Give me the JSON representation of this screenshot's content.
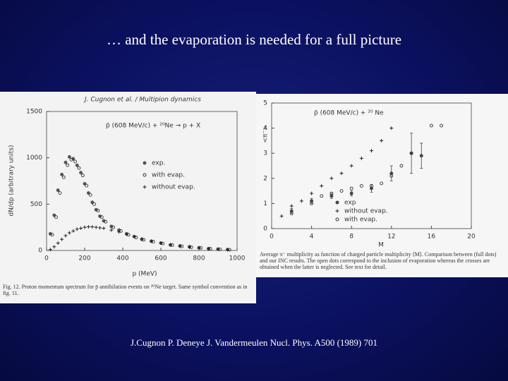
{
  "title": "… and the evaporation is needed for a full picture",
  "citation": "J.Cugnon P. Deneye J. Vandermeulen Nucl. Phys. A500 (1989) 701",
  "chart_data": [
    {
      "type": "scatter",
      "header": "J. Cugnon et al. / Multipion dynamics",
      "title": "p̄ (608 MeV/c) + ²⁰Ne → p + X",
      "x_label": "p (MeV)",
      "y_label": "dN/dp (arbitrary units)",
      "caption": "Fig. 12. Proton momentum spectrum for p̄ annihilation events on ²⁰Ne target. Same symbol convention as in fig. 11.",
      "xlim": [
        0,
        1000
      ],
      "xticks": [
        0,
        200,
        400,
        600,
        800,
        1000
      ],
      "ylim": [
        0,
        1500
      ],
      "yticks": [
        0,
        500,
        1000,
        1500
      ],
      "series": [
        {
          "name": "exp.",
          "color": "#555555",
          "marker": "filled",
          "x": [
            20,
            40,
            60,
            80,
            100,
            120,
            140,
            160,
            180,
            200,
            220,
            240,
            260,
            280,
            300,
            340,
            380,
            420,
            460,
            500,
            550,
            600,
            650,
            700,
            750,
            800,
            850,
            900,
            950
          ],
          "values": [
            180,
            380,
            650,
            820,
            950,
            1010,
            990,
            920,
            840,
            720,
            620,
            520,
            440,
            370,
            320,
            260,
            220,
            180,
            150,
            120,
            100,
            80,
            60,
            50,
            40,
            30,
            20,
            15,
            10
          ]
        },
        {
          "name": "with evap.",
          "color": "#333333",
          "marker": "open",
          "x": [
            30,
            50,
            70,
            90,
            110,
            130,
            150,
            170,
            190,
            210,
            230,
            250,
            270,
            290,
            310,
            350,
            390,
            430,
            470,
            510,
            560,
            610,
            660,
            710,
            760,
            810,
            860,
            910,
            960
          ],
          "values": [
            170,
            360,
            620,
            790,
            920,
            980,
            960,
            890,
            810,
            700,
            600,
            500,
            430,
            360,
            310,
            250,
            210,
            170,
            140,
            115,
            95,
            75,
            58,
            45,
            35,
            28,
            18,
            12,
            8
          ]
        },
        {
          "name": "without evap.",
          "color": "#222222",
          "marker": "cross",
          "x": [
            20,
            40,
            60,
            80,
            100,
            120,
            140,
            160,
            180,
            200,
            220,
            240,
            260,
            280,
            300,
            340,
            380,
            420,
            460,
            500,
            550,
            600,
            650,
            700,
            750,
            800,
            850,
            900,
            950
          ],
          "values": [
            10,
            40,
            80,
            120,
            160,
            190,
            210,
            230,
            240,
            250,
            255,
            255,
            250,
            245,
            240,
            220,
            200,
            175,
            150,
            125,
            100,
            80,
            60,
            45,
            35,
            25,
            18,
            12,
            8
          ]
        }
      ]
    },
    {
      "type": "scatter",
      "title": "p̄ (608 MeV/c) + ²⁰ Ne",
      "x_label": "M",
      "y_label": "<π⁻>",
      "caption": "Average π⁻ multiplicity as function of charged particle multiplicity ⟨M⟩. Comparison between (full dots) and our INC results. The open dots correspond to the inclusion of evaporation whereas the crosses are obtained when the latter is neglected. See text for detail.",
      "xlim": [
        0,
        20
      ],
      "xticks": [
        0,
        4,
        8,
        12,
        16,
        20
      ],
      "ylim": [
        0,
        5
      ],
      "yticks": [
        0,
        1,
        2,
        3,
        4,
        5
      ],
      "series": [
        {
          "name": "exp",
          "color": "#444444",
          "marker": "filled",
          "x": [
            2,
            4,
            6,
            8,
            10,
            12,
            14,
            15
          ],
          "values": [
            0.7,
            1.1,
            1.3,
            1.4,
            1.6,
            2.2,
            3.0,
            2.9
          ],
          "errors": [
            0.1,
            0.1,
            0.1,
            0.1,
            0.15,
            0.3,
            0.8,
            0.5
          ]
        },
        {
          "name": "without evap.",
          "color": "#222222",
          "marker": "cross",
          "x": [
            1,
            2,
            3,
            4,
            5,
            6,
            7,
            8,
            9,
            10,
            11,
            12
          ],
          "values": [
            0.5,
            0.9,
            1.1,
            1.4,
            1.7,
            2.0,
            2.2,
            2.5,
            2.8,
            3.1,
            3.5,
            4.0
          ]
        },
        {
          "name": "with evap.",
          "color": "#333333",
          "marker": "open",
          "x": [
            2,
            4,
            5,
            6,
            7,
            8,
            9,
            10,
            11,
            12,
            13,
            14,
            16,
            17
          ],
          "values": [
            0.6,
            1.0,
            1.3,
            1.4,
            1.5,
            1.6,
            1.7,
            1.7,
            1.8,
            2.1,
            2.5,
            3.0,
            4.1,
            4.1
          ]
        }
      ]
    }
  ]
}
